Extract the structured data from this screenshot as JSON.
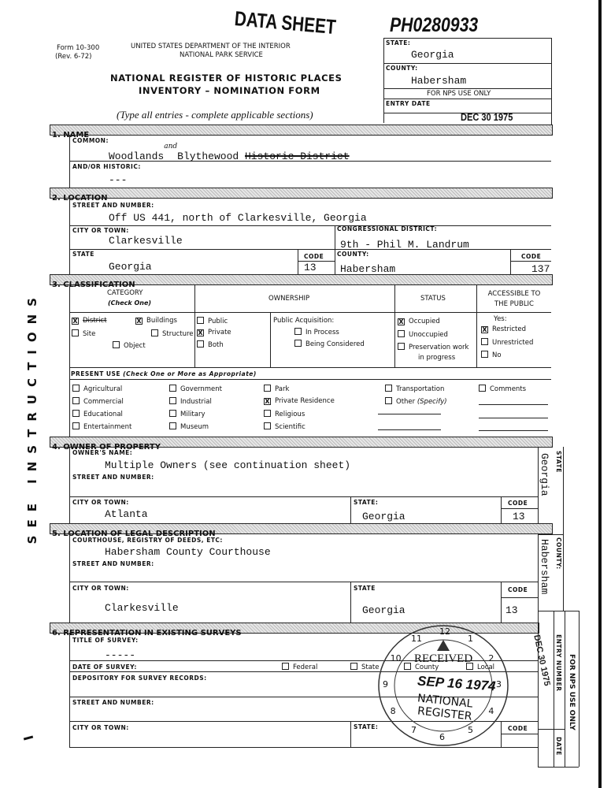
{
  "stamps": {
    "data_sheet": "DATA SHEET",
    "ref_no": "PH0280933",
    "entry_date": "DEC 30 1975",
    "received": {
      "text": "RECEIVED",
      "date": "SEP 16 1974",
      "org1": "NATIONAL",
      "org2": "REGISTER",
      "dial": [
        "1",
        "2",
        "3",
        "4",
        "5",
        "6",
        "7",
        "8",
        "9",
        "10",
        "11",
        "12"
      ]
    },
    "margin_date": "DEC 30 1975"
  },
  "header": {
    "form_no": "Form 10-300",
    "rev": "(Rev. 6-72)",
    "dept": "UNITED STATES DEPARTMENT OF THE INTERIOR",
    "service": "NATIONAL PARK SERVICE",
    "title1": "NATIONAL REGISTER OF HISTORIC PLACES",
    "title2": "INVENTORY – NOMINATION FORM",
    "instructions": "(Type all entries -   complete applicable sections)"
  },
  "nps_box": {
    "state_label": "STATE:",
    "state": "Georgia",
    "county_label": "COUNTY:",
    "county": "Habersham",
    "use_only": "FOR NPS USE ONLY",
    "entry_label": "ENTRY DATE"
  },
  "side_text": "SEE INSTRUCTIONS",
  "section1": {
    "title": "1. NAME",
    "common_label": "COMMON:",
    "common_a": "Woodlands",
    "insert": "and",
    "common_b": "Blythewood",
    "struck": "Historic District",
    "historic_label": "AND/OR HISTORIC:",
    "historic": "---"
  },
  "section2": {
    "title": "2. LOCATION",
    "street_label": "STREET AND NUMBER:",
    "street": "Off US 441, north of Clarkesville, Georgia",
    "city_label": "CITY OR TOWN:",
    "city": "Clarkesville",
    "district_label": "CONGRESSIONAL DISTRICT:",
    "district": "9th - Phil M. Landrum",
    "state_label": "STATE",
    "state": "Georgia",
    "code_label": "CODE",
    "state_code": "13",
    "county_label": "COUNTY:",
    "county": "Habersham",
    "county_code": "137"
  },
  "section3": {
    "title": "3. CLASSIFICATION",
    "headers": {
      "category": "CATEGORY",
      "check_one": "(Check One)",
      "ownership": "OWNERSHIP",
      "status": "STATUS",
      "accessible": "ACCESSIBLE TO THE PUBLIC"
    },
    "category": [
      {
        "label": "District",
        "checked": true,
        "struck": true
      },
      {
        "label": "Buildings",
        "checked": true
      },
      {
        "label": "Site",
        "checked": false
      },
      {
        "label": "Structure",
        "checked": false
      },
      {
        "label": "Object",
        "checked": false
      }
    ],
    "ownership": [
      {
        "label": "Public",
        "checked": false
      },
      {
        "label": "Private",
        "checked": true
      },
      {
        "label": "Both",
        "checked": false
      }
    ],
    "acquisition_label": "Public Acquisition:",
    "acquisition": [
      {
        "label": "In Process",
        "checked": false
      },
      {
        "label": "Being Considered",
        "checked": false
      }
    ],
    "status": [
      {
        "label": "Occupied",
        "checked": true
      },
      {
        "label": "Unoccupied",
        "checked": false
      },
      {
        "label": "Preservation work",
        "checked": false
      }
    ],
    "status_cont": "in progress",
    "yes_label": "Yes:",
    "accessible": [
      {
        "label": "Restricted",
        "checked": true
      },
      {
        "label": "Unrestricted",
        "checked": false
      },
      {
        "label": "No",
        "checked": false
      }
    ],
    "present_use_label": "PRESENT USE",
    "present_use_note": "(Check One or More as Appropriate)",
    "uses": [
      [
        {
          "label": "Agricultural",
          "checked": false
        },
        {
          "label": "Commercial",
          "checked": false
        },
        {
          "label": "Educational",
          "checked": false
        },
        {
          "label": "Entertainment",
          "checked": false
        }
      ],
      [
        {
          "label": "Government",
          "checked": false
        },
        {
          "label": "Industrial",
          "checked": false
        },
        {
          "label": "Military",
          "checked": false
        },
        {
          "label": "Museum",
          "checked": false
        }
      ],
      [
        {
          "label": "Park",
          "checked": false
        },
        {
          "label": "Private Residence",
          "checked": true
        },
        {
          "label": "Religious",
          "checked": false
        },
        {
          "label": "Scientific",
          "checked": false
        }
      ],
      [
        {
          "label": "Transportation",
          "checked": false
        },
        {
          "label": "Other",
          "checked": false,
          "note": "(Specify)"
        }
      ],
      [
        {
          "label": "Comments",
          "checked": false
        }
      ]
    ]
  },
  "section4": {
    "title": "4. OWNER OF PROPERTY",
    "name_label": "OWNER'S NAME:",
    "name": "Multiple Owners (see continuation sheet)",
    "street_label": "STREET AND NUMBER:",
    "city_label": "CITY OR TOWN:",
    "city": "Atlanta",
    "state_label": "STATE:",
    "state": "Georgia",
    "code_label": "CODE",
    "code": "13",
    "side_state_label": "STATE",
    "side_state": "Georgia"
  },
  "section5": {
    "title": "5. LOCATION OF LEGAL DESCRIPTION",
    "courthouse_label": "COURTHOUSE, REGISTRY OF DEEDS, ETC:",
    "courthouse": "Habersham County Courthouse",
    "street_label": "STREET AND NUMBER:",
    "city_label": "CITY OR TOWN:",
    "city": "Clarkesville",
    "state_label": "STATE",
    "state": "Georgia",
    "code_label": "CODE",
    "code": "13",
    "side_county_label": "COUNTY:",
    "side_county": "Habersham"
  },
  "section6": {
    "title": "6. REPRESENTATION IN EXISTING SURVEYS",
    "title_label": "TITLE OF SURVEY:",
    "survey_title": "-----",
    "date_label": "DATE OF SURVEY:",
    "levels": [
      {
        "label": "Federal",
        "checked": false
      },
      {
        "label": "State",
        "checked": false
      },
      {
        "label": "County",
        "checked": false
      },
      {
        "label": "Local",
        "checked": false
      }
    ],
    "depository_label": "DEPOSITORY FOR SURVEY RECORDS:",
    "street_label": "STREET AND NUMBER:",
    "city_label": "CITY OR TOWN:",
    "state_label": "STATE:",
    "code_label": "CODE",
    "side_use_only": "FOR NPS USE ONLY",
    "side_entry": "ENTRY NUMBER",
    "side_date": "DATE"
  }
}
